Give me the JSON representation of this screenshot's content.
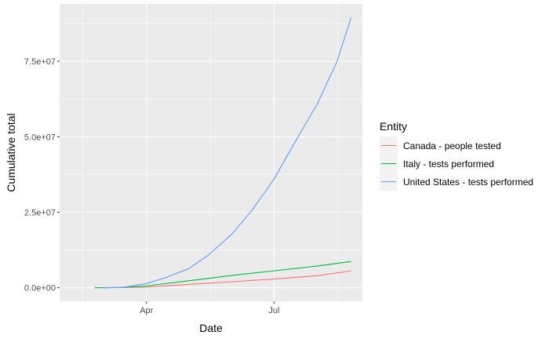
{
  "chart_data": {
    "type": "line",
    "title": "",
    "xlabel": "Date",
    "ylabel": "Cumulative total",
    "x_ticks": [
      {
        "label": "Apr",
        "date": "2020-04-01"
      },
      {
        "label": "Jul",
        "date": "2020-07-01"
      }
    ],
    "y_ticks": [
      {
        "label": "0.0e+00",
        "value": 0
      },
      {
        "label": "2.5e+07",
        "value": 25000000
      },
      {
        "label": "5.0e+07",
        "value": 50000000
      },
      {
        "label": "7.5e+07",
        "value": 75000000
      }
    ],
    "xlim": [
      "2020-01-30",
      "2020-09-02"
    ],
    "ylim": [
      -4500000,
      94000000
    ],
    "grid": true,
    "legend": {
      "title": "Entity",
      "position": "right"
    },
    "series": [
      {
        "name": "Canada - people tested",
        "color": "#F8766D",
        "points": [
          [
            "2020-03-01",
            0
          ],
          [
            "2020-04-01",
            200000
          ],
          [
            "2020-05-01",
            1100000
          ],
          [
            "2020-06-01",
            2000000
          ],
          [
            "2020-07-01",
            2900000
          ],
          [
            "2020-08-01",
            4000000
          ],
          [
            "2020-08-25",
            5600000
          ]
        ]
      },
      {
        "name": "Italy - tests performed",
        "color": "#00BA38",
        "points": [
          [
            "2020-02-24",
            0
          ],
          [
            "2020-03-15",
            100000
          ],
          [
            "2020-04-01",
            600000
          ],
          [
            "2020-05-01",
            2300000
          ],
          [
            "2020-06-01",
            4100000
          ],
          [
            "2020-07-01",
            5600000
          ],
          [
            "2020-08-01",
            7200000
          ],
          [
            "2020-08-25",
            8700000
          ]
        ]
      },
      {
        "name": "United States - tests performed",
        "color": "#619CFF",
        "points": [
          [
            "2020-03-01",
            0
          ],
          [
            "2020-03-15",
            100000
          ],
          [
            "2020-04-01",
            1400000
          ],
          [
            "2020-04-15",
            3400000
          ],
          [
            "2020-05-01",
            6300000
          ],
          [
            "2020-05-15",
            10800000
          ],
          [
            "2020-06-01",
            17800000
          ],
          [
            "2020-06-15",
            25500000
          ],
          [
            "2020-07-01",
            36000000
          ],
          [
            "2020-07-15",
            47500000
          ],
          [
            "2020-08-01",
            61000000
          ],
          [
            "2020-08-15",
            75000000
          ],
          [
            "2020-08-25",
            89500000
          ]
        ]
      }
    ]
  }
}
